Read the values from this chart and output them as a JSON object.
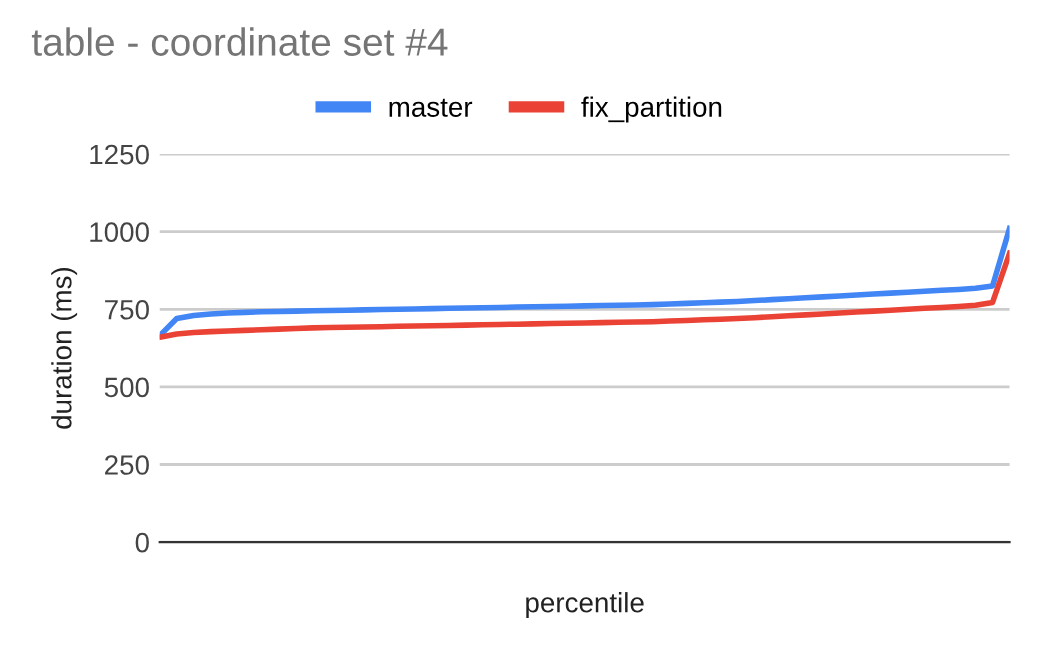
{
  "chart_data": {
    "type": "line",
    "title": "table - coordinate set #4",
    "xlabel": "percentile",
    "ylabel": "duration (ms)",
    "categories": [
      null,
      null,
      null,
      null,
      null,
      null,
      null,
      null,
      null,
      null,
      null,
      null,
      null,
      null,
      null,
      null,
      null,
      null,
      null,
      null,
      null,
      null,
      null,
      null,
      null,
      null,
      null,
      null,
      null,
      null,
      null,
      null,
      null,
      null,
      null,
      null,
      null,
      null,
      null,
      null,
      null,
      null,
      null,
      null,
      null,
      null,
      null,
      null,
      null,
      null,
      null
    ],
    "series": [
      {
        "name": "master",
        "color": "#4285f4",
        "values": [
          665,
          720,
          730,
          735,
          738,
          740,
          742,
          743,
          744,
          745,
          746,
          747,
          748,
          749,
          750,
          751,
          752,
          753,
          754,
          755,
          756,
          757,
          758,
          759,
          760,
          761,
          762,
          763,
          764,
          765,
          767,
          769,
          771,
          773,
          775,
          778,
          781,
          784,
          787,
          790,
          793,
          796,
          799,
          802,
          805,
          808,
          811,
          814,
          818,
          825,
          1010
        ]
      },
      {
        "name": "fix_partition",
        "color": "#ea4335",
        "values": [
          660,
          670,
          675,
          678,
          680,
          682,
          684,
          686,
          688,
          690,
          691,
          692,
          693,
          694,
          695,
          696,
          697,
          698,
          699,
          700,
          701,
          702,
          703,
          704,
          705,
          706,
          707,
          708,
          709,
          710,
          712,
          714,
          716,
          718,
          720,
          723,
          726,
          729,
          732,
          735,
          738,
          741,
          744,
          747,
          750,
          753,
          756,
          759,
          763,
          772,
          930
        ]
      }
    ],
    "ylim": [
      0,
      1250
    ],
    "yticks": [
      0,
      250,
      500,
      750,
      1000,
      1250
    ],
    "grid": "y",
    "legend": "top",
    "tick_labels": "y",
    "marker": "none",
    "line_style": "solid"
  }
}
